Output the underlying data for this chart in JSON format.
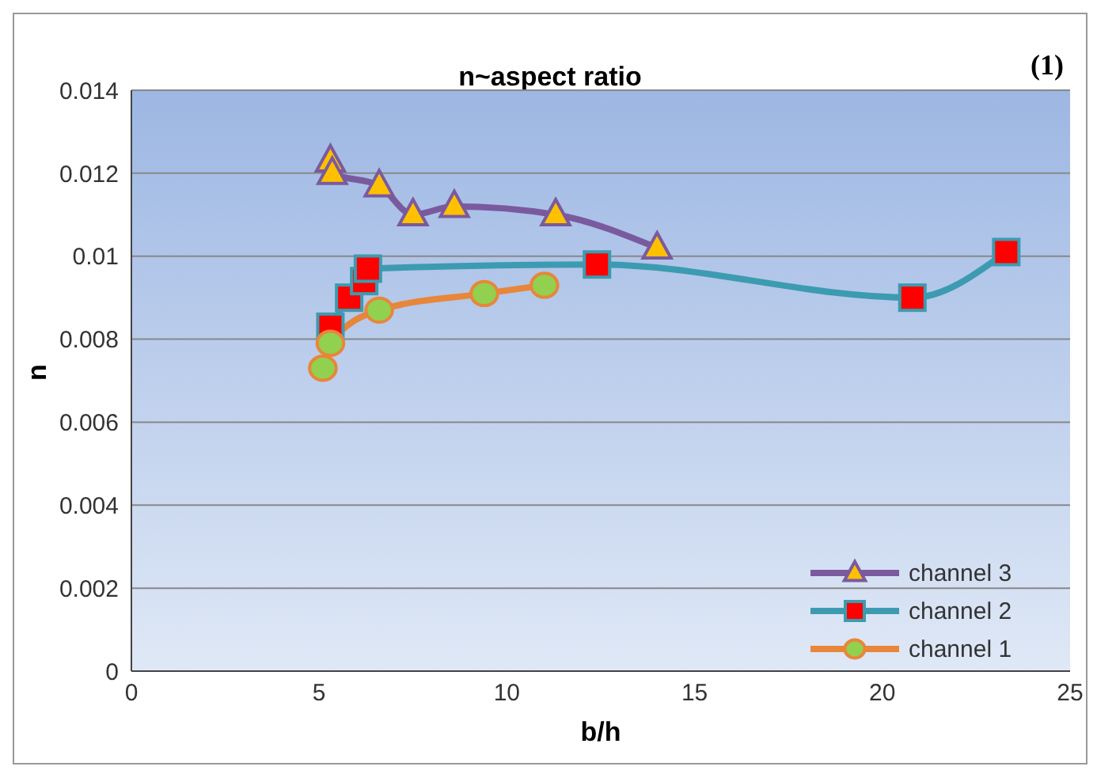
{
  "chart_data": {
    "type": "line",
    "title": "n~aspect ratio",
    "xlabel": "b/h",
    "ylabel": "n",
    "annotations": [
      "(1)"
    ],
    "xlim": [
      0,
      25
    ],
    "xticks": [
      0,
      5,
      10,
      15,
      20,
      25
    ],
    "ylim": [
      0,
      0.014
    ],
    "yticks": [
      0,
      0.002,
      0.004,
      0.006,
      0.008,
      0.01,
      0.012,
      0.014
    ],
    "grid": "y",
    "legend": "bottom right",
    "series": [
      {
        "name": "channel 3",
        "color": "#7a5a9e",
        "colors": [
          "#ffc000",
          "#ffc000",
          "#ffc000",
          "#ffc000",
          "#ffc000",
          "#ffc000",
          "#ffc000"
        ],
        "marker": "triangle",
        "x": [
          5.3,
          5.35,
          6.6,
          7.5,
          8.6,
          11.3,
          14.0
        ],
        "values": [
          0.0123,
          0.012,
          0.0117,
          0.011,
          0.0112,
          0.011,
          0.0102
        ]
      },
      {
        "name": "channel 2",
        "color": "#3c9bb0",
        "colors": [
          "#ff0000",
          "#ff0000",
          "#ff0000",
          "#ff0000",
          "#ff0000",
          "#ff0000",
          "#ff0000"
        ],
        "marker": "square",
        "x": [
          5.3,
          5.8,
          6.2,
          6.3,
          12.4,
          20.8,
          23.3
        ],
        "values": [
          0.0083,
          0.009,
          0.0094,
          0.0097,
          0.0098,
          0.009,
          0.0101
        ]
      },
      {
        "name": "channel 1",
        "color": "#e8863a",
        "colors": [
          "#92d050",
          "#92d050",
          "#92d050",
          "#92d050",
          "#92d050"
        ],
        "marker": "circle",
        "x": [
          5.1,
          5.3,
          6.6,
          9.4,
          11.0
        ],
        "values": [
          0.0073,
          0.0079,
          0.0087,
          0.0091,
          0.0093
        ]
      }
    ]
  }
}
